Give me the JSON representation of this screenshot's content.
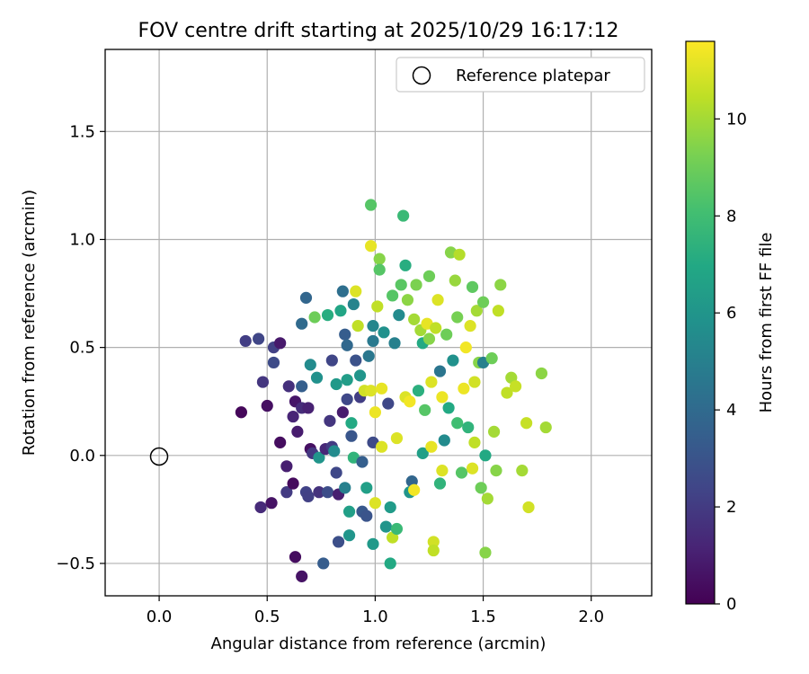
{
  "chart_data": {
    "type": "scatter",
    "title": "FOV centre drift starting at 2025/10/29 16:17:12",
    "xlabel": "Angular distance from reference (arcmin)",
    "ylabel": "Rotation from reference (arcmin)",
    "xlim": [
      -0.25,
      2.28
    ],
    "ylim": [
      -0.65,
      1.88
    ],
    "grid": true,
    "x_ticks": [
      0.0,
      0.5,
      1.0,
      1.5,
      2.0
    ],
    "x_tick_labels": [
      "0.0",
      "0.5",
      "1.0",
      "1.5",
      "2.0"
    ],
    "y_ticks": [
      -0.5,
      0.0,
      0.5,
      1.0,
      1.5
    ],
    "y_tick_labels": [
      "−0.5",
      "0.0",
      "0.5",
      "1.0",
      "1.5"
    ],
    "legend": {
      "label": "Reference platepar",
      "location": "upper right"
    },
    "reference_point": {
      "x": 0.0,
      "y": 0.0
    },
    "colorbar": {
      "label": "Hours from first FF file",
      "range": [
        0,
        11.6
      ],
      "ticks": [
        0,
        2,
        4,
        6,
        8,
        10
      ],
      "tick_labels": [
        "0",
        "2",
        "4",
        "6",
        "8",
        "10"
      ],
      "colormap": "viridis"
    },
    "points": [
      {
        "x": 0.38,
        "y": 0.2,
        "t": 0.2
      },
      {
        "x": 0.4,
        "y": 0.53,
        "t": 2.1
      },
      {
        "x": 0.46,
        "y": 0.54,
        "t": 2.4
      },
      {
        "x": 0.48,
        "y": 0.34,
        "t": 1.8
      },
      {
        "x": 0.5,
        "y": 0.23,
        "t": 0.5
      },
      {
        "x": 0.53,
        "y": 0.5,
        "t": 2.2
      },
      {
        "x": 0.53,
        "y": 0.43,
        "t": 2.6
      },
      {
        "x": 0.56,
        "y": 0.52,
        "t": 0.8
      },
      {
        "x": 0.56,
        "y": 0.06,
        "t": 0.4
      },
      {
        "x": 0.47,
        "y": -0.24,
        "t": 1.4
      },
      {
        "x": 0.52,
        "y": -0.22,
        "t": 0.6
      },
      {
        "x": 0.59,
        "y": -0.05,
        "t": 1.0
      },
      {
        "x": 0.59,
        "y": -0.17,
        "t": 2.0
      },
      {
        "x": 0.62,
        "y": -0.13,
        "t": 0.3
      },
      {
        "x": 0.6,
        "y": 0.32,
        "t": 1.6
      },
      {
        "x": 0.63,
        "y": 0.25,
        "t": 0.7
      },
      {
        "x": 0.62,
        "y": 0.18,
        "t": 1.2
      },
      {
        "x": 0.64,
        "y": 0.11,
        "t": 0.9
      },
      {
        "x": 0.66,
        "y": 0.22,
        "t": 1.5
      },
      {
        "x": 0.66,
        "y": 0.32,
        "t": 3.5
      },
      {
        "x": 0.66,
        "y": 0.61,
        "t": 4.0
      },
      {
        "x": 0.68,
        "y": 0.73,
        "t": 3.8
      },
      {
        "x": 0.69,
        "y": 0.22,
        "t": 1.1
      },
      {
        "x": 0.7,
        "y": 0.42,
        "t": 5.5
      },
      {
        "x": 0.7,
        "y": 0.03,
        "t": 0.5
      },
      {
        "x": 0.71,
        "y": 0.01,
        "t": 1.9
      },
      {
        "x": 0.72,
        "y": 0.64,
        "t": 9.0
      },
      {
        "x": 0.73,
        "y": 0.36,
        "t": 5.8
      },
      {
        "x": 0.74,
        "y": -0.01,
        "t": 6.0
      },
      {
        "x": 0.68,
        "y": -0.17,
        "t": 2.3
      },
      {
        "x": 0.69,
        "y": -0.19,
        "t": 2.2
      },
      {
        "x": 0.63,
        "y": -0.47,
        "t": 0.4
      },
      {
        "x": 0.66,
        "y": -0.56,
        "t": 0.6
      },
      {
        "x": 0.74,
        "y": -0.17,
        "t": 1.7
      },
      {
        "x": 0.76,
        "y": -0.5,
        "t": 3.4
      },
      {
        "x": 0.77,
        "y": 0.03,
        "t": 1.3
      },
      {
        "x": 0.78,
        "y": -0.17,
        "t": 2.7
      },
      {
        "x": 0.78,
        "y": 0.65,
        "t": 7.2
      },
      {
        "x": 0.79,
        "y": 0.16,
        "t": 1.8
      },
      {
        "x": 0.8,
        "y": 0.04,
        "t": 2.0
      },
      {
        "x": 0.8,
        "y": 0.44,
        "t": 2.4
      },
      {
        "x": 0.81,
        "y": 0.02,
        "t": 5.5
      },
      {
        "x": 0.82,
        "y": 0.33,
        "t": 6.2
      },
      {
        "x": 0.82,
        "y": -0.08,
        "t": 2.5
      },
      {
        "x": 0.83,
        "y": -0.18,
        "t": 1.0
      },
      {
        "x": 0.83,
        "y": -0.4,
        "t": 2.8
      },
      {
        "x": 0.84,
        "y": 0.67,
        "t": 6.8
      },
      {
        "x": 0.85,
        "y": 0.76,
        "t": 4.2
      },
      {
        "x": 0.85,
        "y": 0.2,
        "t": 0.9
      },
      {
        "x": 0.86,
        "y": -0.15,
        "t": 5.0
      },
      {
        "x": 0.86,
        "y": 0.56,
        "t": 3.4
      },
      {
        "x": 0.87,
        "y": 0.51,
        "t": 3.9
      },
      {
        "x": 0.87,
        "y": 0.35,
        "t": 6.4
      },
      {
        "x": 0.87,
        "y": 0.26,
        "t": 2.5
      },
      {
        "x": 0.88,
        "y": -0.26,
        "t": 6.5
      },
      {
        "x": 0.88,
        "y": -0.37,
        "t": 6.0
      },
      {
        "x": 0.89,
        "y": 0.15,
        "t": 7.0
      },
      {
        "x": 0.89,
        "y": 0.09,
        "t": 3.1
      },
      {
        "x": 0.9,
        "y": -0.01,
        "t": 7.5
      },
      {
        "x": 0.9,
        "y": 0.7,
        "t": 5.2
      },
      {
        "x": 0.91,
        "y": 0.44,
        "t": 2.9
      },
      {
        "x": 0.91,
        "y": 0.76,
        "t": 11.0
      },
      {
        "x": 0.92,
        "y": 0.6,
        "t": 10.5
      },
      {
        "x": 0.93,
        "y": 0.37,
        "t": 6.0
      },
      {
        "x": 0.93,
        "y": 0.27,
        "t": 2.1
      },
      {
        "x": 0.94,
        "y": -0.03,
        "t": 3.5
      },
      {
        "x": 0.94,
        "y": -0.26,
        "t": 3.2
      },
      {
        "x": 0.95,
        "y": 0.3,
        "t": 10.8
      },
      {
        "x": 0.96,
        "y": -0.15,
        "t": 6.5
      },
      {
        "x": 0.96,
        "y": -0.28,
        "t": 3.0
      },
      {
        "x": 0.97,
        "y": 0.46,
        "t": 4.6
      },
      {
        "x": 0.98,
        "y": 1.16,
        "t": 8.5
      },
      {
        "x": 0.98,
        "y": 0.97,
        "t": 11.2
      },
      {
        "x": 0.98,
        "y": 0.3,
        "t": 11.0
      },
      {
        "x": 0.99,
        "y": 0.6,
        "t": 5.3
      },
      {
        "x": 0.99,
        "y": 0.53,
        "t": 4.7
      },
      {
        "x": 0.99,
        "y": 0.06,
        "t": 2.6
      },
      {
        "x": 0.99,
        "y": -0.41,
        "t": 6.2
      },
      {
        "x": 1.0,
        "y": 0.2,
        "t": 11.3
      },
      {
        "x": 1.0,
        "y": -0.22,
        "t": 11.0
      },
      {
        "x": 1.01,
        "y": 0.69,
        "t": 10.5
      },
      {
        "x": 1.02,
        "y": 0.91,
        "t": 9.5
      },
      {
        "x": 1.02,
        "y": 0.86,
        "t": 8.5
      },
      {
        "x": 1.03,
        "y": 0.31,
        "t": 11.2
      },
      {
        "x": 1.03,
        "y": 0.04,
        "t": 11.0
      },
      {
        "x": 1.04,
        "y": 0.57,
        "t": 5.8
      },
      {
        "x": 1.05,
        "y": -0.33,
        "t": 6.0
      },
      {
        "x": 1.06,
        "y": 0.24,
        "t": 2.5
      },
      {
        "x": 1.07,
        "y": -0.24,
        "t": 6.3
      },
      {
        "x": 1.07,
        "y": -0.5,
        "t": 7.0
      },
      {
        "x": 1.08,
        "y": -0.38,
        "t": 10.5
      },
      {
        "x": 1.08,
        "y": 0.74,
        "t": 8.5
      },
      {
        "x": 1.09,
        "y": 0.52,
        "t": 5.0
      },
      {
        "x": 1.1,
        "y": -0.34,
        "t": 7.8
      },
      {
        "x": 1.1,
        "y": 0.08,
        "t": 11.0
      },
      {
        "x": 1.11,
        "y": 0.65,
        "t": 5.5
      },
      {
        "x": 1.12,
        "y": 0.79,
        "t": 8.6
      },
      {
        "x": 1.13,
        "y": 1.11,
        "t": 7.8
      },
      {
        "x": 1.14,
        "y": 0.88,
        "t": 7.2
      },
      {
        "x": 1.14,
        "y": 0.27,
        "t": 11.0
      },
      {
        "x": 1.15,
        "y": 0.72,
        "t": 9.6
      },
      {
        "x": 1.16,
        "y": 0.25,
        "t": 11.4
      },
      {
        "x": 1.16,
        "y": -0.17,
        "t": 6.0
      },
      {
        "x": 1.17,
        "y": -0.12,
        "t": 3.8
      },
      {
        "x": 1.18,
        "y": -0.16,
        "t": 11.4
      },
      {
        "x": 1.18,
        "y": 0.63,
        "t": 10.0
      },
      {
        "x": 1.19,
        "y": 0.79,
        "t": 9.3
      },
      {
        "x": 1.2,
        "y": 0.3,
        "t": 7.3
      },
      {
        "x": 1.21,
        "y": 0.58,
        "t": 10.0
      },
      {
        "x": 1.22,
        "y": 0.52,
        "t": 7.0
      },
      {
        "x": 1.22,
        "y": 0.01,
        "t": 6.5
      },
      {
        "x": 1.23,
        "y": 0.21,
        "t": 8.5
      },
      {
        "x": 1.24,
        "y": 0.61,
        "t": 11.2
      },
      {
        "x": 1.25,
        "y": 0.83,
        "t": 9.0
      },
      {
        "x": 1.25,
        "y": 0.54,
        "t": 9.5
      },
      {
        "x": 1.26,
        "y": 0.34,
        "t": 11.0
      },
      {
        "x": 1.26,
        "y": 0.04,
        "t": 11.2
      },
      {
        "x": 1.27,
        "y": -0.4,
        "t": 10.8
      },
      {
        "x": 1.27,
        "y": -0.44,
        "t": 10.5
      },
      {
        "x": 1.28,
        "y": 0.59,
        "t": 10.5
      },
      {
        "x": 1.29,
        "y": 0.72,
        "t": 11.0
      },
      {
        "x": 1.3,
        "y": -0.13,
        "t": 7.5
      },
      {
        "x": 1.3,
        "y": 0.39,
        "t": 4.5
      },
      {
        "x": 1.31,
        "y": 0.27,
        "t": 11.3
      },
      {
        "x": 1.31,
        "y": -0.07,
        "t": 11.0
      },
      {
        "x": 1.32,
        "y": 0.07,
        "t": 5.5
      },
      {
        "x": 1.33,
        "y": 0.56,
        "t": 9.0
      },
      {
        "x": 1.34,
        "y": 0.22,
        "t": 7.0
      },
      {
        "x": 1.35,
        "y": 0.94,
        "t": 9.5
      },
      {
        "x": 1.36,
        "y": 0.44,
        "t": 5.8
      },
      {
        "x": 1.37,
        "y": 0.81,
        "t": 9.8
      },
      {
        "x": 1.38,
        "y": 0.15,
        "t": 8.0
      },
      {
        "x": 1.38,
        "y": 0.64,
        "t": 9.2
      },
      {
        "x": 1.39,
        "y": 0.93,
        "t": 10.3
      },
      {
        "x": 1.4,
        "y": -0.08,
        "t": 8.5
      },
      {
        "x": 1.41,
        "y": 0.31,
        "t": 11.3
      },
      {
        "x": 1.42,
        "y": 0.5,
        "t": 11.4
      },
      {
        "x": 1.43,
        "y": 0.13,
        "t": 7.5
      },
      {
        "x": 1.44,
        "y": 0.6,
        "t": 11.0
      },
      {
        "x": 1.45,
        "y": 0.78,
        "t": 8.7
      },
      {
        "x": 1.45,
        "y": -0.06,
        "t": 11.0
      },
      {
        "x": 1.46,
        "y": 0.34,
        "t": 10.8
      },
      {
        "x": 1.46,
        "y": 0.06,
        "t": 10.5
      },
      {
        "x": 1.47,
        "y": 0.67,
        "t": 10.0
      },
      {
        "x": 1.48,
        "y": 0.43,
        "t": 9.5
      },
      {
        "x": 1.49,
        "y": -0.15,
        "t": 9.0
      },
      {
        "x": 1.5,
        "y": 0.71,
        "t": 9.0
      },
      {
        "x": 1.5,
        "y": 0.43,
        "t": 5.0
      },
      {
        "x": 1.51,
        "y": -0.45,
        "t": 9.5
      },
      {
        "x": 1.51,
        "y": 0.0,
        "t": 7.0
      },
      {
        "x": 1.52,
        "y": -0.2,
        "t": 10.0
      },
      {
        "x": 1.54,
        "y": 0.45,
        "t": 9.0
      },
      {
        "x": 1.55,
        "y": 0.11,
        "t": 10.0
      },
      {
        "x": 1.56,
        "y": -0.07,
        "t": 9.5
      },
      {
        "x": 1.57,
        "y": 0.67,
        "t": 10.5
      },
      {
        "x": 1.58,
        "y": 0.79,
        "t": 9.6
      },
      {
        "x": 1.61,
        "y": 0.29,
        "t": 10.5
      },
      {
        "x": 1.63,
        "y": 0.36,
        "t": 10.0
      },
      {
        "x": 1.65,
        "y": 0.32,
        "t": 10.6
      },
      {
        "x": 1.68,
        "y": -0.07,
        "t": 10.0
      },
      {
        "x": 1.7,
        "y": 0.15,
        "t": 10.6
      },
      {
        "x": 1.71,
        "y": -0.24,
        "t": 10.8
      },
      {
        "x": 1.77,
        "y": 0.38,
        "t": 9.6
      },
      {
        "x": 1.79,
        "y": 0.13,
        "t": 10.0
      }
    ]
  }
}
